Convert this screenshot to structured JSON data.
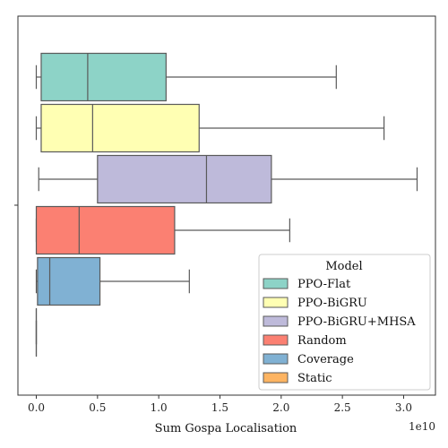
{
  "chart_data": {
    "type": "box",
    "orientation": "horizontal",
    "xlabel": "Sum Gospa Localisation",
    "x_offset_label": "1e10",
    "x_unit": 10000000000.0,
    "xlim": [
      -0.15,
      3.26
    ],
    "x_ticks": [
      0.0,
      0.5,
      1.0,
      1.5,
      2.0,
      2.5,
      3.0
    ],
    "x_tick_labels": [
      "0.0",
      "0.5",
      "1.0",
      "1.5",
      "2.0",
      "2.5",
      "3.0"
    ],
    "grid": false,
    "legend": {
      "title": "Model",
      "placement": "lower-right"
    },
    "series": [
      {
        "name": "PPO-Flat",
        "color": "#8dd3c7",
        "whisker_low": 0.0,
        "q1": 0.04,
        "median": 0.42,
        "q3": 1.06,
        "whisker_high": 2.45
      },
      {
        "name": "PPO-BiGRU",
        "color": "#ffffb3",
        "whisker_low": 0.0,
        "q1": 0.04,
        "median": 0.46,
        "q3": 1.33,
        "whisker_high": 2.84
      },
      {
        "name": "PPO-BiGRU+MHSA",
        "color": "#bebada",
        "whisker_low": 0.02,
        "q1": 0.5,
        "median": 1.39,
        "q3": 1.92,
        "whisker_high": 3.11
      },
      {
        "name": "Random",
        "color": "#fb8072",
        "whisker_low": 0.0,
        "q1": 0.0,
        "median": 0.35,
        "q3": 1.13,
        "whisker_high": 2.07
      },
      {
        "name": "Coverage",
        "color": "#80b1d3",
        "whisker_low": 0.0,
        "q1": 0.01,
        "median": 0.11,
        "q3": 0.52,
        "whisker_high": 1.25
      },
      {
        "name": "Static",
        "color": "#fdb462",
        "whisker_low": 0.0,
        "q1": 0.0,
        "median": 0.0,
        "q3": 0.0,
        "whisker_high": 0.0
      }
    ]
  }
}
